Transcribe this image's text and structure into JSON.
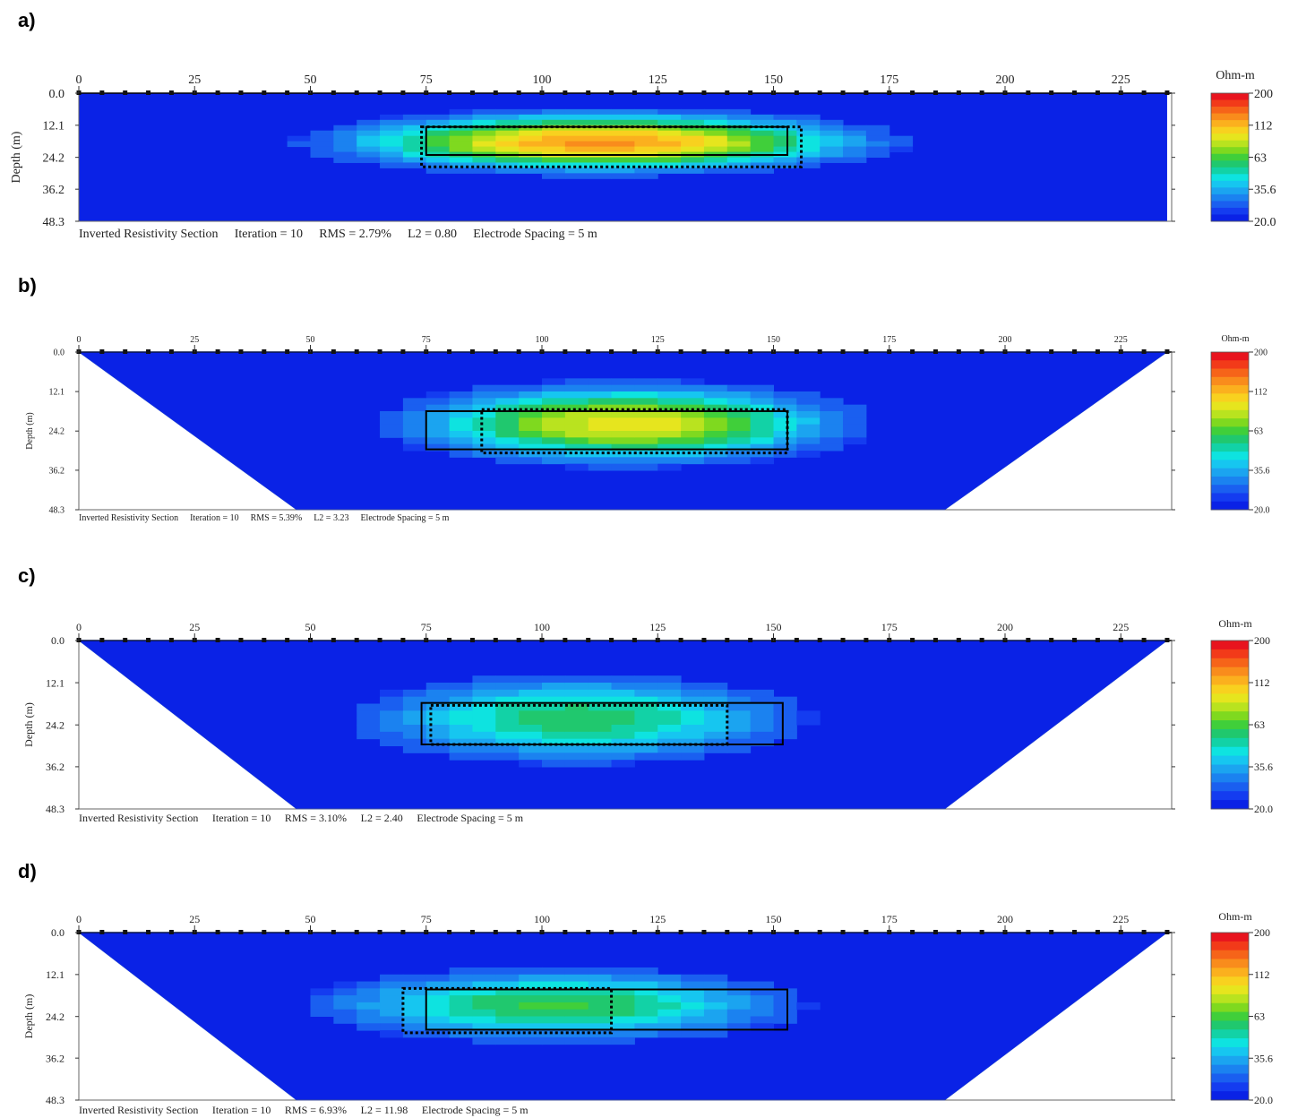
{
  "chart_data": {
    "type": "heatmap",
    "colorbar": {
      "title": "Ohm-m",
      "tick_labels": [
        "200",
        "112",
        "63",
        "35.6",
        "20.0"
      ],
      "colors": [
        "#e8141e",
        "#f23a19",
        "#f66419",
        "#f98c1c",
        "#fbb01e",
        "#f8d11f",
        "#e6e51e",
        "#b9e31f",
        "#7fd91f",
        "#40cf3a",
        "#20c86e",
        "#12d2a6",
        "#0ee3e0",
        "#16c6f0",
        "#1ba4f0",
        "#1b82f0",
        "#1a5ff0",
        "#143cf0",
        "#0a22e6"
      ]
    },
    "x_ticks": [
      "0",
      "25",
      "50",
      "75",
      "100",
      "125",
      "150",
      "175",
      "200",
      "225"
    ],
    "y_ticks": [
      "0.0",
      "12.1",
      "24.2",
      "36.2",
      "48.3"
    ],
    "ylabel": "Depth (m)",
    "electrode_spacing_m": 5,
    "panels": [
      {
        "letter": "a)",
        "shape": "rectangle",
        "caption": [
          "Inverted Resistivity Section",
          "Iteration = 10",
          "RMS = 2.79%",
          "L2 = 0.80",
          "Electrode Spacing = 5 m"
        ],
        "solid_box": {
          "x": [
            75,
            153
          ],
          "depth": [
            12.7,
            23.3
          ]
        },
        "dotted_box": {
          "x": [
            74,
            156
          ],
          "depth": [
            12.7,
            27.8
          ]
        },
        "anomaly": {
          "x_center": 113,
          "x_half_width": 46,
          "depth_center": 18.5,
          "depth_half_width": 9,
          "peak_ohm_m": 132
        }
      },
      {
        "letter": "b)",
        "shape": "trapezoid",
        "caption": [
          "Inverted Resistivity Section",
          "Iteration = 10",
          "RMS = 5.39%",
          "L2 = 3.23",
          "Electrode Spacing = 5 m"
        ],
        "solid_box": {
          "x": [
            75,
            153
          ],
          "depth": [
            18.1,
            29.8
          ]
        },
        "dotted_box": {
          "x": [
            87,
            153
          ],
          "depth": [
            17.6,
            30.9
          ]
        },
        "anomaly": {
          "x_center": 118,
          "x_half_width": 40,
          "depth_center": 22,
          "depth_half_width": 10,
          "peak_ohm_m": 95
        }
      },
      {
        "letter": "c)",
        "shape": "trapezoid",
        "caption": [
          "Inverted Resistivity Section",
          "Iteration = 10",
          "RMS = 3.10%",
          "L2 = 2.40",
          "Electrode Spacing = 5 m"
        ],
        "solid_box": {
          "x": [
            74,
            152
          ],
          "depth": [
            17.9,
            29.8
          ]
        },
        "dotted_box": {
          "x": [
            76,
            140
          ],
          "depth": [
            18.6,
            29.8
          ]
        },
        "anomaly": {
          "x_center": 108,
          "x_half_width": 42,
          "depth_center": 22.5,
          "depth_half_width": 11,
          "peak_ohm_m": 58
        }
      },
      {
        "letter": "d)",
        "shape": "trapezoid",
        "caption": [
          "Inverted Resistivity Section",
          "Iteration = 10",
          "RMS = 6.93%",
          "L2 = 11.98",
          "Electrode Spacing = 5 m"
        ],
        "solid_box": {
          "x": [
            75,
            153
          ],
          "depth": [
            16.4,
            28
          ]
        },
        "dotted_box": {
          "x": [
            70,
            115
          ],
          "depth": [
            16.1,
            28.9
          ]
        },
        "anomaly": {
          "x_center": 103,
          "x_half_width": 45,
          "depth_center": 21,
          "depth_half_width": 9,
          "peak_ohm_m": 62
        }
      }
    ]
  }
}
